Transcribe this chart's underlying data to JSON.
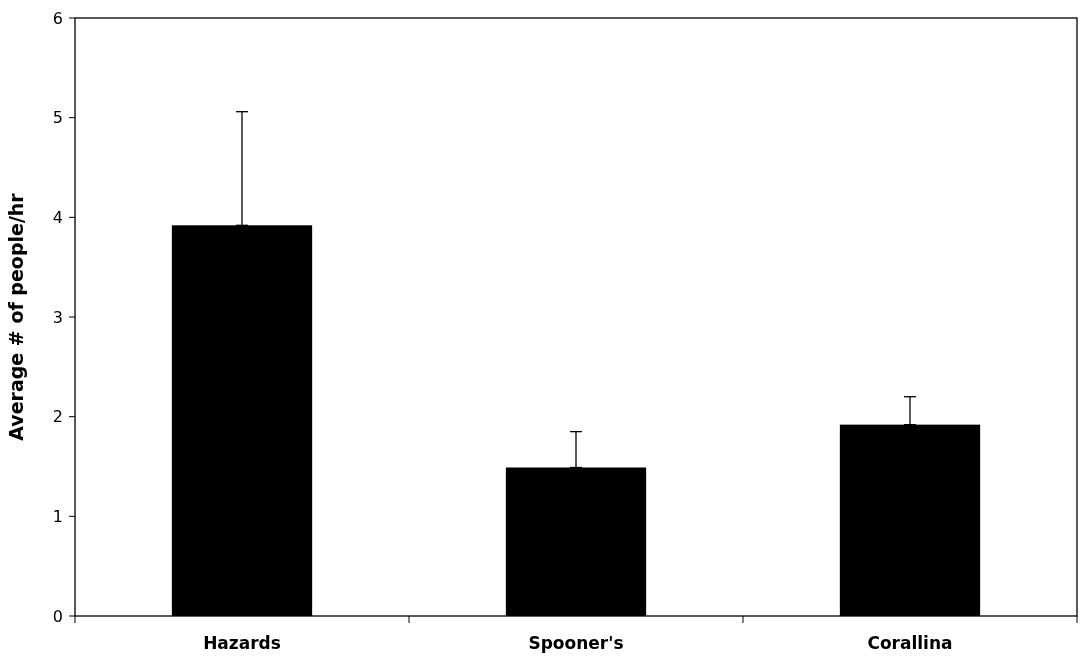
{
  "chart_data": {
    "type": "bar",
    "ylabel": "Average # of people/hr",
    "categories": [
      "Hazards",
      "Spooner's",
      "Corallina"
    ],
    "values": [
      3.92,
      1.49,
      1.92
    ],
    "errors": [
      [
        3.92,
        5.06
      ],
      [
        1.49,
        1.85
      ],
      [
        1.92,
        2.2
      ]
    ],
    "color": "#000000",
    "ylim": [
      0,
      6
    ],
    "yticks": [
      0,
      1,
      2,
      3,
      4,
      5,
      6
    ],
    "grid": false
  }
}
